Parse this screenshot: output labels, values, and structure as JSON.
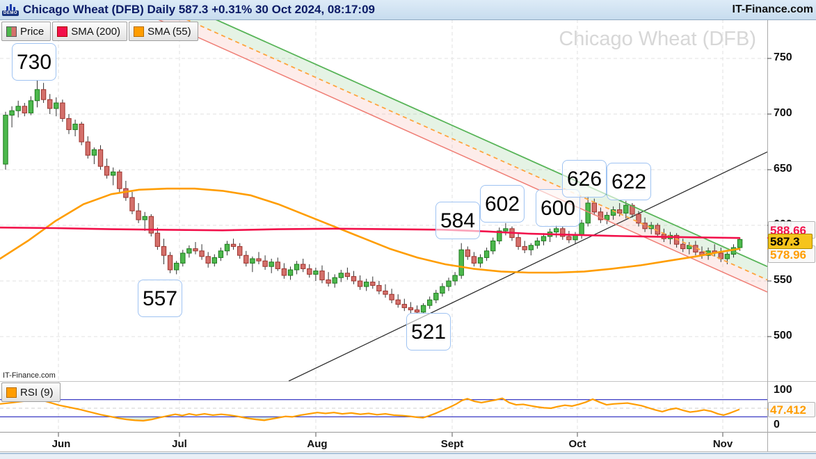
{
  "header": {
    "title": "Chicago Wheat (DFB) Daily 587.3 +0.31% 30 Oct 2024, 08:17:09",
    "brand": "IT-Finance.com",
    "demo_badge": "DEMO"
  },
  "legend": {
    "price": "Price",
    "sma200": "SMA (200)",
    "sma55": "SMA (55)"
  },
  "rsi_panel": {
    "legend": "RSI (9)",
    "axis_max": "100",
    "axis_min": "0",
    "value_tag": "47.412"
  },
  "price_axis": {
    "ticks": [
      "750",
      "700",
      "650",
      "600",
      "550",
      "500"
    ],
    "sma200_tag": "588.66",
    "price_tag": "587.3",
    "sma55_tag": "578.96"
  },
  "time_axis": {
    "months": [
      "Jun",
      "Jul",
      "Aug",
      "Sept",
      "Oct",
      "Nov"
    ]
  },
  "watermark": "Chicago Wheat (DFB)",
  "footnote": "IT-Finance.com",
  "swing_labels": [
    {
      "label": "730"
    },
    {
      "label": "557"
    },
    {
      "label": "521"
    },
    {
      "label": "584"
    },
    {
      "label": "602"
    },
    {
      "label": "600"
    },
    {
      "label": "626"
    },
    {
      "label": "622"
    }
  ],
  "colors": {
    "up": "#4db84d",
    "up_border": "#1e7a1e",
    "down": "#d4706b",
    "down_border": "#9c322c",
    "wick": "#333333",
    "sma200": "#f2104a",
    "sma55": "#ff9d00",
    "channel_upper": "#57b457",
    "channel_mid": "#ffa43d",
    "channel_lower": "#ef7d74",
    "channel_fill_up": "rgba(96,181,96,0.16)",
    "channel_fill_down": "rgba(239,125,116,0.15)",
    "trendline": "#2f2f2f",
    "grid": "#e2e2e2",
    "rsi_line": "#ff9d00",
    "rsi_level": "#3b3bc4",
    "rsi_fill": "rgba(120,170,120,0.28)",
    "tag_gold": "#f6c41c"
  },
  "chart_data": {
    "type": "candlestick",
    "title": "Chicago Wheat (DFB) Daily",
    "last_price": 587.3,
    "change_pct": "+0.31%",
    "timestamp": "30 Oct 2024, 08:17:09",
    "ylim": [
      460,
      785
    ],
    "rsi_ylim": [
      0,
      100
    ],
    "x0": 8,
    "dx": 9.1,
    "month_x": [
      84,
      258,
      454,
      650,
      830,
      1039
    ],
    "grid_prices": [
      750,
      700,
      650,
      600,
      550,
      500
    ],
    "swing_points": [
      730,
      557,
      521,
      584,
      602,
      600,
      626,
      622
    ],
    "candles": [
      [
        655,
        702,
        650,
        699
      ],
      [
        699,
        707,
        688,
        703
      ],
      [
        703,
        712,
        697,
        707
      ],
      [
        707,
        710,
        698,
        701
      ],
      [
        701,
        716,
        699,
        712
      ],
      [
        712,
        730,
        706,
        722
      ],
      [
        722,
        728,
        710,
        713
      ],
      [
        713,
        718,
        700,
        705
      ],
      [
        705,
        715,
        698,
        710
      ],
      [
        710,
        713,
        693,
        696
      ],
      [
        696,
        700,
        682,
        686
      ],
      [
        686,
        695,
        680,
        691
      ],
      [
        691,
        693,
        672,
        675
      ],
      [
        675,
        680,
        660,
        663
      ],
      [
        663,
        670,
        655,
        668
      ],
      [
        668,
        672,
        650,
        653
      ],
      [
        653,
        660,
        642,
        645
      ],
      [
        645,
        652,
        636,
        648
      ],
      [
        648,
        650,
        630,
        633
      ],
      [
        633,
        640,
        622,
        625
      ],
      [
        625,
        630,
        610,
        613
      ],
      [
        613,
        620,
        602,
        605
      ],
      [
        605,
        612,
        595,
        608
      ],
      [
        608,
        610,
        590,
        593
      ],
      [
        593,
        598,
        578,
        581
      ],
      [
        581,
        588,
        565,
        573
      ],
      [
        573,
        576,
        557,
        560
      ],
      [
        560,
        568,
        556,
        566
      ],
      [
        566,
        578,
        563,
        575
      ],
      [
        575,
        582,
        571,
        579
      ],
      [
        579,
        585,
        574,
        577
      ],
      [
        577,
        583,
        569,
        572
      ],
      [
        572,
        576,
        562,
        566
      ],
      [
        566,
        574,
        563,
        571
      ],
      [
        571,
        580,
        568,
        577
      ],
      [
        577,
        586,
        573,
        583
      ],
      [
        583,
        588,
        578,
        581
      ],
      [
        581,
        584,
        570,
        573
      ],
      [
        573,
        577,
        563,
        566
      ],
      [
        566,
        572,
        558,
        570
      ],
      [
        570,
        576,
        565,
        568
      ],
      [
        568,
        573,
        560,
        563
      ],
      [
        563,
        570,
        557,
        567
      ],
      [
        567,
        571,
        559,
        561
      ],
      [
        561,
        566,
        552,
        555
      ],
      [
        555,
        563,
        551,
        560
      ],
      [
        560,
        568,
        556,
        565
      ],
      [
        565,
        570,
        558,
        561
      ],
      [
        561,
        565,
        553,
        556
      ],
      [
        556,
        562,
        550,
        559
      ],
      [
        559,
        564,
        548,
        551
      ],
      [
        551,
        558,
        545,
        548
      ],
      [
        548,
        556,
        544,
        553
      ],
      [
        553,
        560,
        549,
        557
      ],
      [
        557,
        562,
        551,
        554
      ],
      [
        554,
        559,
        547,
        550
      ],
      [
        550,
        555,
        542,
        545
      ],
      [
        545,
        552,
        541,
        549
      ],
      [
        549,
        554,
        543,
        546
      ],
      [
        546,
        550,
        538,
        541
      ],
      [
        541,
        547,
        535,
        538
      ],
      [
        538,
        543,
        530,
        533
      ],
      [
        533,
        538,
        526,
        529
      ],
      [
        529,
        534,
        523,
        526
      ],
      [
        526,
        531,
        521,
        524
      ],
      [
        524,
        528,
        521,
        522
      ],
      [
        522,
        530,
        521,
        528
      ],
      [
        528,
        536,
        525,
        533
      ],
      [
        533,
        542,
        530,
        539
      ],
      [
        539,
        548,
        536,
        545
      ],
      [
        545,
        553,
        541,
        550
      ],
      [
        550,
        558,
        546,
        555
      ],
      [
        555,
        584,
        552,
        578
      ],
      [
        578,
        581,
        569,
        572
      ],
      [
        572,
        576,
        563,
        566
      ],
      [
        566,
        574,
        562,
        571
      ],
      [
        571,
        580,
        568,
        577
      ],
      [
        577,
        589,
        574,
        586
      ],
      [
        586,
        598,
        583,
        595
      ],
      [
        595,
        602,
        591,
        597
      ],
      [
        597,
        599,
        586,
        589
      ],
      [
        589,
        593,
        578,
        581
      ],
      [
        581,
        586,
        575,
        578
      ],
      [
        578,
        584,
        573,
        582
      ],
      [
        582,
        589,
        579,
        586
      ],
      [
        586,
        593,
        582,
        590
      ],
      [
        590,
        597,
        585,
        594
      ],
      [
        594,
        600,
        589,
        597
      ],
      [
        597,
        599,
        587,
        590
      ],
      [
        590,
        595,
        584,
        587
      ],
      [
        587,
        594,
        583,
        591
      ],
      [
        591,
        605,
        588,
        602
      ],
      [
        602,
        626,
        599,
        620
      ],
      [
        620,
        624,
        609,
        612
      ],
      [
        612,
        616,
        602,
        605
      ],
      [
        605,
        612,
        601,
        609
      ],
      [
        609,
        617,
        605,
        614
      ],
      [
        614,
        620,
        608,
        611
      ],
      [
        611,
        622,
        606,
        618
      ],
      [
        618,
        620,
        607,
        610
      ],
      [
        610,
        613,
        599,
        602
      ],
      [
        602,
        607,
        594,
        597
      ],
      [
        597,
        603,
        592,
        600
      ],
      [
        600,
        602,
        589,
        592
      ],
      [
        592,
        597,
        585,
        588
      ],
      [
        588,
        594,
        583,
        591
      ],
      [
        591,
        593,
        580,
        583
      ],
      [
        583,
        588,
        576,
        579
      ],
      [
        579,
        585,
        574,
        582
      ],
      [
        582,
        586,
        573,
        576
      ],
      [
        576,
        581,
        570,
        573
      ],
      [
        573,
        580,
        569,
        577
      ],
      [
        577,
        583,
        572,
        575
      ],
      [
        575,
        580,
        567,
        570
      ],
      [
        570,
        576,
        565,
        574
      ],
      [
        574,
        583,
        571,
        580
      ],
      [
        580,
        589,
        577,
        587.3
      ]
    ],
    "sma200": [
      [
        0,
        598
      ],
      [
        80,
        597.5
      ],
      [
        160,
        596.5
      ],
      [
        240,
        596
      ],
      [
        320,
        595.5
      ],
      [
        400,
        596.5
      ],
      [
        480,
        597
      ],
      [
        560,
        596.5
      ],
      [
        640,
        596
      ],
      [
        700,
        594.5
      ],
      [
        760,
        592.5
      ],
      [
        820,
        591.5
      ],
      [
        880,
        590.5
      ],
      [
        940,
        589.8
      ],
      [
        1000,
        589.2
      ],
      [
        1063,
        588.66
      ]
    ],
    "sma55": [
      [
        0,
        570
      ],
      [
        40,
        586
      ],
      [
        80,
        604
      ],
      [
        120,
        619
      ],
      [
        160,
        628
      ],
      [
        200,
        632
      ],
      [
        240,
        633
      ],
      [
        280,
        633
      ],
      [
        320,
        631
      ],
      [
        360,
        627
      ],
      [
        400,
        619
      ],
      [
        440,
        609
      ],
      [
        480,
        599
      ],
      [
        520,
        589
      ],
      [
        560,
        579
      ],
      [
        600,
        571
      ],
      [
        640,
        565
      ],
      [
        680,
        561
      ],
      [
        720,
        558.5
      ],
      [
        760,
        557.5
      ],
      [
        800,
        557.5
      ],
      [
        840,
        558.5
      ],
      [
        880,
        561
      ],
      [
        920,
        564
      ],
      [
        960,
        568
      ],
      [
        1000,
        572
      ],
      [
        1030,
        575.5
      ],
      [
        1063,
        578.96
      ]
    ],
    "channel": {
      "upper": {
        "x": [
          310,
          1103
        ],
        "price": [
          785,
          563
        ]
      },
      "mid": {
        "x": [
          268,
          1103
        ],
        "price": [
          785,
          551
        ]
      },
      "lower": {
        "x": [
          227,
          1103
        ],
        "price": [
          785,
          540
        ]
      }
    },
    "trendline": {
      "x": [
        415,
        1103
      ],
      "price": [
        460,
        666
      ]
    },
    "rsi": {
      "period": 9,
      "levels": [
        70,
        30
      ],
      "mid": 50,
      "last": 47.412,
      "points": [
        [
          0,
          60
        ],
        [
          18,
          63
        ],
        [
          38,
          67
        ],
        [
          55,
          71
        ],
        [
          70,
          64
        ],
        [
          85,
          57
        ],
        [
          100,
          52
        ],
        [
          115,
          47
        ],
        [
          130,
          41
        ],
        [
          145,
          35
        ],
        [
          158,
          31
        ],
        [
          170,
          27
        ],
        [
          182,
          24
        ],
        [
          194,
          22
        ],
        [
          206,
          21
        ],
        [
          218,
          24
        ],
        [
          228,
          28
        ],
        [
          240,
          32
        ],
        [
          252,
          36
        ],
        [
          262,
          33
        ],
        [
          272,
          37
        ],
        [
          282,
          34
        ],
        [
          294,
          37
        ],
        [
          306,
          34
        ],
        [
          318,
          36
        ],
        [
          330,
          34
        ],
        [
          342,
          31
        ],
        [
          355,
          27
        ],
        [
          368,
          24
        ],
        [
          380,
          22
        ],
        [
          390,
          25
        ],
        [
          400,
          28
        ],
        [
          410,
          31
        ],
        [
          420,
          30
        ],
        [
          432,
          34
        ],
        [
          444,
          37
        ],
        [
          456,
          40
        ],
        [
          468,
          38
        ],
        [
          480,
          40
        ],
        [
          492,
          37
        ],
        [
          505,
          39
        ],
        [
          518,
          36
        ],
        [
          530,
          38
        ],
        [
          542,
          35
        ],
        [
          554,
          37
        ],
        [
          566,
          34
        ],
        [
          578,
          33
        ],
        [
          590,
          31
        ],
        [
          600,
          29
        ],
        [
          608,
          28
        ],
        [
          616,
          32
        ],
        [
          626,
          38
        ],
        [
          636,
          45
        ],
        [
          646,
          52
        ],
        [
          656,
          60
        ],
        [
          664,
          68
        ],
        [
          672,
          72
        ],
        [
          682,
          66
        ],
        [
          692,
          63
        ],
        [
          702,
          66
        ],
        [
          712,
          69
        ],
        [
          722,
          73
        ],
        [
          732,
          63
        ],
        [
          742,
          58
        ],
        [
          752,
          59
        ],
        [
          762,
          56
        ],
        [
          772,
          53
        ],
        [
          782,
          51
        ],
        [
          792,
          50
        ],
        [
          802,
          54
        ],
        [
          812,
          57
        ],
        [
          822,
          55
        ],
        [
          832,
          59
        ],
        [
          842,
          64
        ],
        [
          852,
          71
        ],
        [
          862,
          64
        ],
        [
          872,
          58
        ],
        [
          882,
          60
        ],
        [
          892,
          61
        ],
        [
          902,
          62
        ],
        [
          912,
          59
        ],
        [
          922,
          56
        ],
        [
          932,
          51
        ],
        [
          942,
          46
        ],
        [
          952,
          42
        ],
        [
          962,
          47
        ],
        [
          972,
          50
        ],
        [
          982,
          45
        ],
        [
          992,
          41
        ],
        [
          1002,
          43
        ],
        [
          1012,
          46
        ],
        [
          1022,
          43
        ],
        [
          1032,
          37
        ],
        [
          1040,
          34
        ],
        [
          1048,
          38
        ],
        [
          1056,
          43
        ],
        [
          1063,
          47.4
        ]
      ]
    }
  }
}
